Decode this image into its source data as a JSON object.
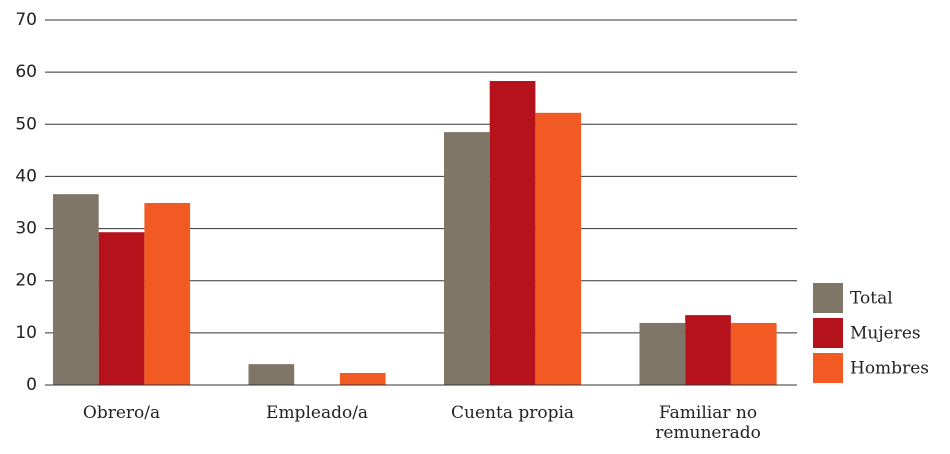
{
  "chart_data": {
    "type": "bar",
    "categories": [
      "Obrero/a",
      "Empleado/a",
      "Cuenta propia",
      "Familiar no remunerado"
    ],
    "series": [
      {
        "name": "Total",
        "color": "#7f7668",
        "values": [
          36.6,
          4.0,
          48.5,
          11.9
        ]
      },
      {
        "name": "Mujeres",
        "color": "#b5121b",
        "values": [
          29.3,
          0,
          58.3,
          13.4
        ]
      },
      {
        "name": "Hombres",
        "color": "#f15a22",
        "values": [
          34.9,
          2.3,
          52.2,
          11.9
        ]
      }
    ],
    "ylim": [
      0,
      70
    ],
    "yticks": [
      0,
      10,
      20,
      30,
      40,
      50,
      60,
      70
    ],
    "grid": true,
    "legend": "right"
  }
}
